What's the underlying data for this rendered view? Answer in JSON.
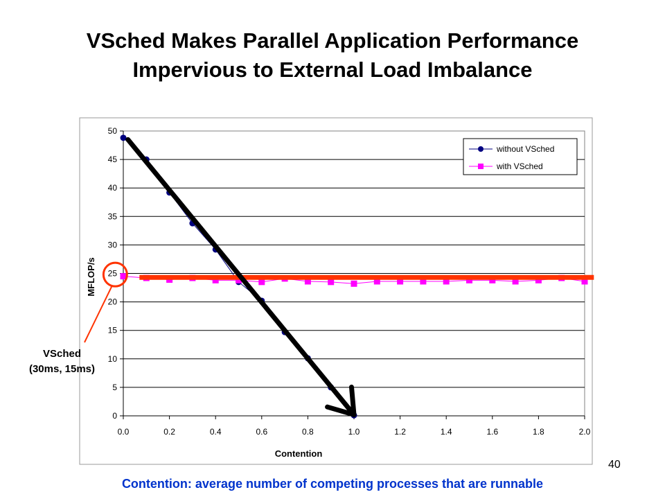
{
  "slide": {
    "title_line1": "VSched Makes Parallel Application Performance",
    "title_line2": "Impervious to External Load Imbalance",
    "callout_line1": "VSched",
    "callout_line2": "(30ms, 15ms)",
    "footer": "Contention: average number of competing processes that are runnable",
    "page_number": "40"
  },
  "colors": {
    "series_without": "#000080",
    "series_with": "#ff00ff",
    "overlay_hline": "#ff3300",
    "overlay_arrow": "#000000",
    "callout": "#ff3300",
    "footer_text": "#0033cc"
  },
  "chart_data": {
    "type": "line",
    "xlabel": "Contention",
    "ylabel": "MFLOP/s",
    "xlim": [
      0,
      2
    ],
    "ylim": [
      0,
      50
    ],
    "x_ticks": [
      "0.0",
      "0.2",
      "0.4",
      "0.6",
      "0.8",
      "1.0",
      "1.2",
      "1.4",
      "1.6",
      "1.8",
      "2.0"
    ],
    "y_ticks": [
      "0",
      "5",
      "10",
      "15",
      "20",
      "25",
      "30",
      "35",
      "40",
      "45",
      "50"
    ],
    "grid": "horizontal",
    "legend_position": "top-right",
    "series": [
      {
        "name": "without VSched",
        "marker": "circle",
        "x": [
          0.0,
          0.1,
          0.2,
          0.3,
          0.4,
          0.5,
          0.6,
          0.7,
          0.8,
          0.9,
          1.0
        ],
        "y": [
          48.8,
          45.0,
          39.2,
          33.8,
          29.2,
          23.5,
          20.2,
          14.7,
          10.1,
          5.0,
          0.1
        ]
      },
      {
        "name": "with VSched",
        "marker": "square",
        "x": [
          0.0,
          0.1,
          0.2,
          0.3,
          0.4,
          0.5,
          0.6,
          0.7,
          0.8,
          0.9,
          1.0,
          1.1,
          1.2,
          1.3,
          1.4,
          1.5,
          1.6,
          1.7,
          1.8,
          1.9,
          2.0
        ],
        "y": [
          24.5,
          24.2,
          23.9,
          24.2,
          23.8,
          23.8,
          23.5,
          24.1,
          23.6,
          23.5,
          23.2,
          23.6,
          23.6,
          23.6,
          23.6,
          23.8,
          23.8,
          23.6,
          23.8,
          24.2,
          23.6
        ]
      }
    ],
    "annotations": {
      "hline_y": 24.3,
      "hline_x": [
        0.07,
        2.04
      ],
      "arrow_from": [
        0.02,
        48.5
      ],
      "arrow_to": [
        1.0,
        0.2
      ],
      "circle_at": [
        -0.05,
        24.8
      ]
    }
  }
}
